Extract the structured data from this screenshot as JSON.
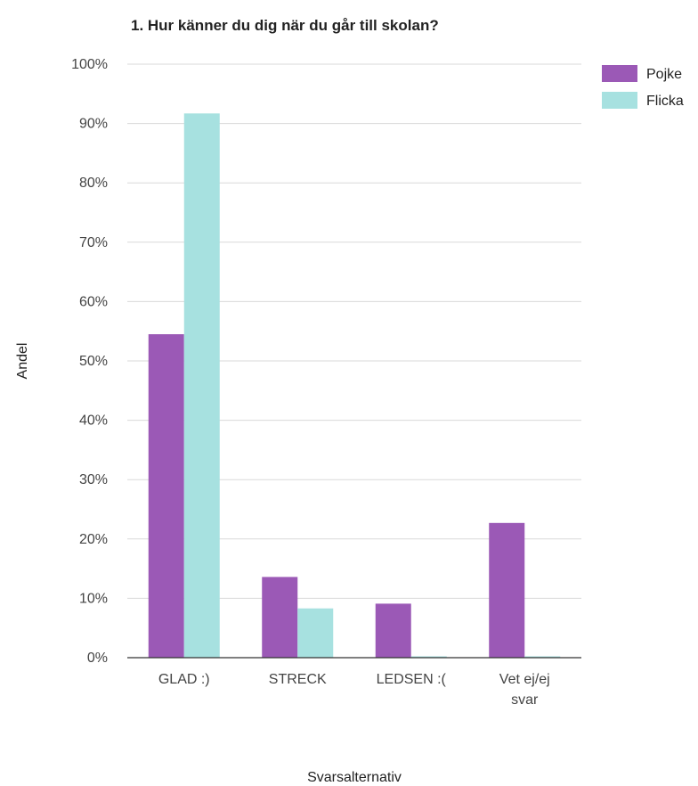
{
  "chart_data": {
    "type": "bar",
    "title": "1. Hur känner du dig när du går till skolan?",
    "xlabel": "Svarsalternativ",
    "ylabel": "Andel",
    "categories": [
      [
        "GLAD :)"
      ],
      [
        "STRECK"
      ],
      [
        "LEDSEN :("
      ],
      [
        "Vet ej/ej",
        "svar"
      ]
    ],
    "series": [
      {
        "name": "Pojke",
        "color": "#9b59b6",
        "values": [
          54.5,
          13.6,
          9.1,
          22.7
        ]
      },
      {
        "name": "Flicka",
        "color": "#a7e1e0",
        "values": [
          91.7,
          8.3,
          0,
          0
        ]
      }
    ],
    "ylim": [
      0,
      100
    ],
    "yticks": [
      0,
      10,
      20,
      30,
      40,
      50,
      60,
      70,
      80,
      90,
      100
    ],
    "ytick_suffix": "%",
    "grid": true,
    "legend_position": "right"
  }
}
